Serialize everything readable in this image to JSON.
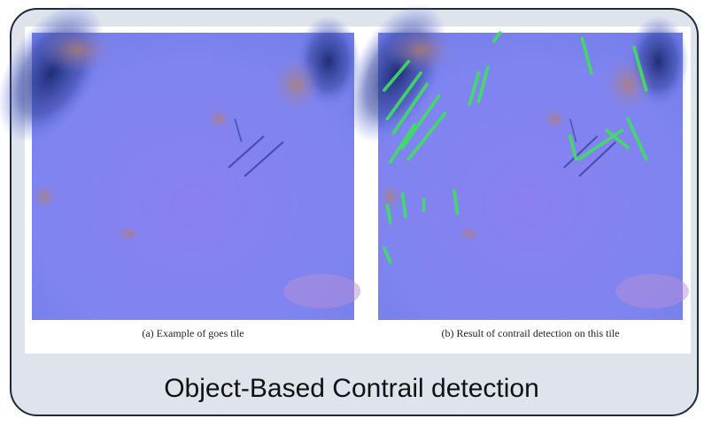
{
  "figures": [
    {
      "caption": "(a) Example of goes tile"
    },
    {
      "caption": "(b) Result of contrail detection on this tile"
    }
  ],
  "title": "Object-Based Contrail detection"
}
